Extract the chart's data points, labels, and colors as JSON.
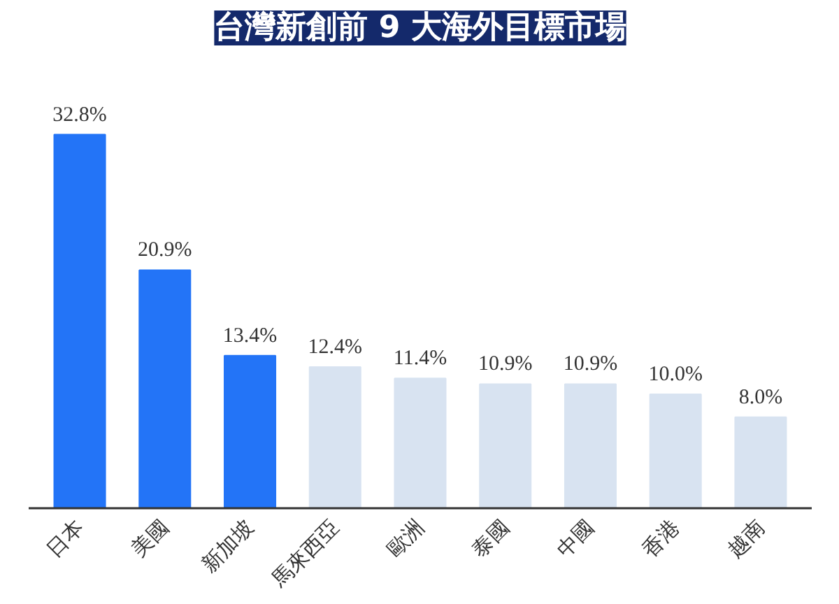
{
  "chart_data": {
    "type": "bar",
    "title": "台灣新創前 9 大海外目標市場",
    "categories": [
      "日本",
      "美國",
      "新加坡",
      "馬來西亞",
      "歐洲",
      "泰國",
      "中國",
      "香港",
      "越南"
    ],
    "values": [
      32.8,
      20.9,
      13.4,
      12.4,
      11.4,
      10.9,
      10.9,
      10.0,
      8.0
    ],
    "value_labels": [
      "32.8%",
      "20.9%",
      "13.4%",
      "12.4%",
      "11.4%",
      "10.9%",
      "10.9%",
      "10.0%",
      "8.0%"
    ],
    "colors": [
      "#2374f7",
      "#2374f7",
      "#2374f7",
      "#d8e3f1",
      "#d8e3f1",
      "#d8e3f1",
      "#d8e3f1",
      "#d8e3f1",
      "#d8e3f1"
    ],
    "tick_labels": "x",
    "grid": false
  }
}
